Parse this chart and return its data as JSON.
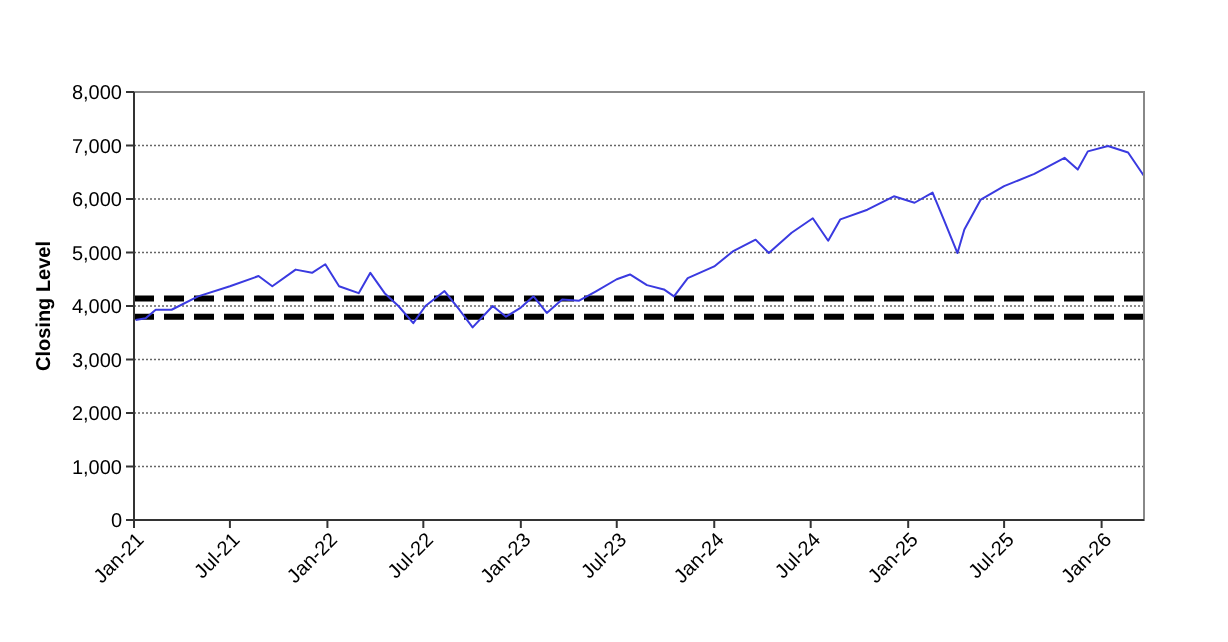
{
  "chart_data": {
    "type": "line",
    "ylabel": "Closing Level",
    "grid": "y",
    "marker": "none",
    "line_style": "solid",
    "xlim": [
      "2021-01-01",
      "2026-03-22"
    ],
    "xticks": [
      {
        "value": "2021-01-01",
        "label": "Jan-21"
      },
      {
        "value": "2021-07-01",
        "label": "Jul-21"
      },
      {
        "value": "2022-01-01",
        "label": "Jan-22"
      },
      {
        "value": "2022-07-01",
        "label": "Jul-22"
      },
      {
        "value": "2023-01-01",
        "label": "Jan-23"
      },
      {
        "value": "2023-07-01",
        "label": "Jul-23"
      },
      {
        "value": "2024-01-01",
        "label": "Jan-24"
      },
      {
        "value": "2024-07-01",
        "label": "Jul-24"
      },
      {
        "value": "2025-01-01",
        "label": "Jan-25"
      },
      {
        "value": "2025-07-01",
        "label": "Jul-25"
      },
      {
        "value": "2026-01-01",
        "label": "Jan-26"
      }
    ],
    "ylim": [
      0,
      8000
    ],
    "yticks": [
      {
        "value": 0,
        "label": "0"
      },
      {
        "value": 1000,
        "label": "1,000"
      },
      {
        "value": 2000,
        "label": "2,000"
      },
      {
        "value": 3000,
        "label": "3,000"
      },
      {
        "value": 4000,
        "label": "4,000"
      },
      {
        "value": 5000,
        "label": "5,000"
      },
      {
        "value": 6000,
        "label": "6,000"
      },
      {
        "value": 7000,
        "label": "7,000"
      },
      {
        "value": 8000,
        "label": "8,000"
      }
    ],
    "ref_lines": [
      {
        "axis": "y",
        "value": 4140,
        "label": null,
        "color": "#000000",
        "line_style": "dashed"
      },
      {
        "axis": "y",
        "value": 3800,
        "label": null,
        "color": "#000000",
        "line_style": "dashed"
      }
    ],
    "series": [
      {
        "color": "#3a3ae0",
        "x": [
          "2021-01-04",
          "2021-01-23",
          "2021-02-11",
          "2021-03-13",
          "2021-05-02",
          "2021-07-01",
          "2021-08-24",
          "2021-09-19",
          "2021-11-02",
          "2021-12-03",
          "2021-12-28",
          "2022-01-23",
          "2022-03-01",
          "2022-03-23",
          "2022-04-19",
          "2022-05-15",
          "2022-06-12",
          "2022-07-05",
          "2022-08-10",
          "2022-09-07",
          "2022-10-02",
          "2022-11-09",
          "2022-12-04",
          "2023-01-01",
          "2023-01-25",
          "2023-02-19",
          "2023-03-20",
          "2023-04-21",
          "2023-05-22",
          "2023-07-01",
          "2023-07-26",
          "2023-08-27",
          "2023-09-28",
          "2023-10-17",
          "2023-11-12",
          "2024-01-01",
          "2024-02-05",
          "2024-03-19",
          "2024-04-13",
          "2024-05-26",
          "2024-07-05",
          "2024-08-03",
          "2024-08-26",
          "2024-10-16",
          "2024-12-05",
          "2025-01-13",
          "2025-02-16",
          "2025-03-09",
          "2025-04-04",
          "2025-04-17",
          "2025-05-18",
          "2025-07-01",
          "2025-08-27",
          "2025-10-23",
          "2025-11-17",
          "2025-12-06",
          "2026-01-13",
          "2026-02-20",
          "2026-03-22"
        ],
        "values": [
          3740,
          3770,
          3930,
          3930,
          4180,
          4370,
          4560,
          4370,
          4680,
          4620,
          4780,
          4370,
          4240,
          4620,
          4240,
          4000,
          3680,
          4000,
          4280,
          3930,
          3600,
          4000,
          3800,
          3970,
          4180,
          3870,
          4120,
          4100,
          4270,
          4500,
          4590,
          4390,
          4310,
          4180,
          4520,
          4740,
          5020,
          5240,
          4990,
          5370,
          5640,
          5220,
          5620,
          5800,
          6050,
          5930,
          6120,
          5620,
          4990,
          5430,
          5990,
          6240,
          6470,
          6770,
          6550,
          6890,
          6990,
          6870,
          6430
        ]
      }
    ]
  }
}
